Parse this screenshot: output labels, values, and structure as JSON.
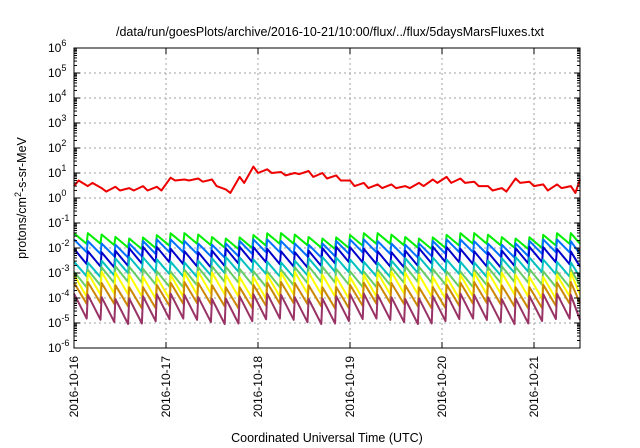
{
  "chart_data": {
    "type": "line",
    "title": "/data/run/goesPlots/archive/2016-10-21/10:00/flux/../flux/5daysMarsFluxes.txt",
    "xlabel": "Coordinated Universal Time (UTC)",
    "ylabel": {
      "base": "protons/cm",
      "sup": "2",
      "rest": "-s-sr-MeV"
    },
    "y_scale": "log",
    "ylim": [
      1e-06,
      1000000.0
    ],
    "xlim": [
      "2016-10-16T00:00",
      "2016-10-21T12:00"
    ],
    "x_ticks": [
      "2016-10-16",
      "2016-10-17",
      "2016-10-18",
      "2016-10-19",
      "2016-10-20",
      "2016-10-21"
    ],
    "y_ticks": [
      {
        "base": "10",
        "exp": "-6",
        "value": 1e-06
      },
      {
        "base": "10",
        "exp": "-5",
        "value": 1e-05
      },
      {
        "base": "10",
        "exp": "-4",
        "value": 0.0001
      },
      {
        "base": "10",
        "exp": "-3",
        "value": 0.001
      },
      {
        "base": "10",
        "exp": "-2",
        "value": 0.01
      },
      {
        "base": "10",
        "exp": "-1",
        "value": 0.1
      },
      {
        "base": "10",
        "exp": "0",
        "value": 1
      },
      {
        "base": "10",
        "exp": "1",
        "value": 10
      },
      {
        "base": "10",
        "exp": "2",
        "value": 100
      },
      {
        "base": "10",
        "exp": "3",
        "value": 1000
      },
      {
        "base": "10",
        "exp": "4",
        "value": 10000
      },
      {
        "base": "10",
        "exp": "5",
        "value": 100000
      },
      {
        "base": "10",
        "exp": "6",
        "value": 1000000
      }
    ],
    "grid": true,
    "series": [
      {
        "color": "#ee0000",
        "x": [
          "2016-10-16T00:00",
          "2016-10-16T01:12",
          "2016-10-16T03:36",
          "2016-10-16T04:48",
          "2016-10-16T07:12",
          "2016-10-16T08:24",
          "2016-10-16T10:48",
          "2016-10-16T12:00",
          "2016-10-16T14:24",
          "2016-10-16T15:36",
          "2016-10-16T18:00",
          "2016-10-16T19:12",
          "2016-10-16T21:36",
          "2016-10-16T22:48",
          "2016-10-17T01:12",
          "2016-10-17T02:24",
          "2016-10-17T04:48",
          "2016-10-17T06:00",
          "2016-10-17T08:24",
          "2016-10-17T09:36",
          "2016-10-17T12:00",
          "2016-10-17T13:12",
          "2016-10-17T15:36",
          "2016-10-17T16:48",
          "2016-10-17T19:12",
          "2016-10-17T20:24",
          "2016-10-17T22:48",
          "2016-10-18T00:00",
          "2016-10-18T02:24",
          "2016-10-18T03:36",
          "2016-10-18T06:00",
          "2016-10-18T07:12",
          "2016-10-18T09:36",
          "2016-10-18T10:48",
          "2016-10-18T13:12",
          "2016-10-18T14:24",
          "2016-10-18T16:48",
          "2016-10-18T18:00",
          "2016-10-18T20:24",
          "2016-10-18T21:36",
          "2016-10-19T00:00",
          "2016-10-19T01:12",
          "2016-10-19T03:36",
          "2016-10-19T04:48",
          "2016-10-19T07:12",
          "2016-10-19T08:24",
          "2016-10-19T10:48",
          "2016-10-19T12:00",
          "2016-10-19T14:24",
          "2016-10-19T15:36",
          "2016-10-19T18:00",
          "2016-10-19T19:12",
          "2016-10-19T21:36",
          "2016-10-19T22:48",
          "2016-10-20T01:12",
          "2016-10-20T02:24",
          "2016-10-20T04:48",
          "2016-10-20T06:00",
          "2016-10-20T08:24",
          "2016-10-20T09:36",
          "2016-10-20T12:00",
          "2016-10-20T13:12",
          "2016-10-20T15:36",
          "2016-10-20T16:48",
          "2016-10-20T19:12",
          "2016-10-20T20:24",
          "2016-10-20T22:48",
          "2016-10-21T00:00",
          "2016-10-21T02:24",
          "2016-10-21T03:36",
          "2016-10-21T06:00",
          "2016-10-21T07:12",
          "2016-10-21T09:36",
          "2016-10-21T10:48",
          "2016-10-21T12:00"
        ],
        "values": [
          3,
          5,
          3,
          4,
          2.5,
          1.8,
          2.8,
          2,
          2.5,
          2,
          3,
          2,
          2.8,
          2,
          6.5,
          5,
          5.5,
          5,
          6,
          4.5,
          5.5,
          3,
          2.2,
          1.6,
          7,
          4,
          18,
          10,
          14,
          10,
          11,
          8,
          10,
          9,
          12,
          7,
          10,
          6,
          8,
          5,
          5,
          3,
          4,
          2.5,
          3.5,
          2.5,
          3.5,
          2.5,
          3,
          2.5,
          4,
          3,
          5.5,
          4,
          7,
          4,
          6,
          4,
          4.5,
          3,
          3,
          2,
          2.5,
          1.8,
          6,
          4,
          4.5,
          3,
          3.5,
          2,
          3.5,
          2.5,
          3,
          1.6,
          5.5
        ]
      },
      {
        "color": "#00ee00",
        "period_hours": 3.6,
        "peak": 0.032,
        "trough": 0.012
      },
      {
        "color": "#0070ff",
        "period_hours": 3.6,
        "peak": 0.018,
        "trough": 0.0055
      },
      {
        "color": "#0000cc",
        "period_hours": 3.6,
        "peak": 0.009,
        "trough": 0.0022
      },
      {
        "color": "#00c0c0",
        "period_hours": 3.6,
        "peak": 0.0035,
        "trough": 0.0009
      },
      {
        "color": "#66cc66",
        "period_hours": 3.6,
        "peak": 0.0015,
        "trough": 0.00035
      },
      {
        "color": "#ffff00",
        "period_hours": 3.6,
        "peak": 0.0009,
        "trough": 0.00012
      },
      {
        "color": "#cc8800",
        "period_hours": 3.6,
        "peak": 0.00035,
        "trough": 5e-05
      },
      {
        "color": "#993366",
        "period_hours": 3.6,
        "peak": 0.00012,
        "trough": 1.2e-05
      }
    ]
  }
}
